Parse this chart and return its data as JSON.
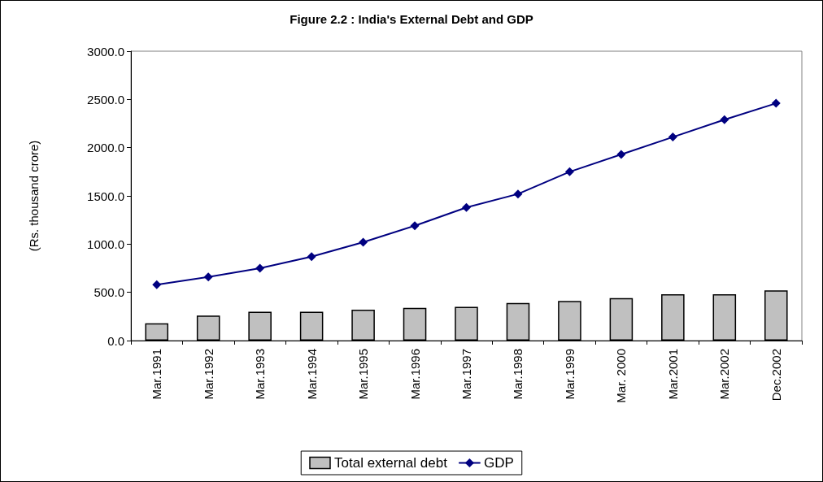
{
  "chart_data": {
    "type": "bar",
    "title": "Figure 2.2 : India's External Debt and GDP",
    "ylabel": "(Rs. thousand crore)",
    "categories": [
      "Mar.1991",
      "Mar.1992",
      "Mar.1993",
      "Mar.1994",
      "Mar.1995",
      "Mar.1996",
      "Mar.1997",
      "Mar.1998",
      "Mar.1999",
      "Mar. 2000",
      "Mar.2001",
      "Mar.2002",
      "Dec.2002"
    ],
    "series": [
      {
        "name": "Total external debt",
        "color": "#c0c0c0",
        "values": [
          180,
          260,
          300,
          300,
          320,
          340,
          350,
          390,
          410,
          440,
          480,
          480,
          520
        ]
      },
      {
        "name": "GDP",
        "type": "line",
        "color": "#000080",
        "marker": "diamond",
        "values": [
          580,
          660,
          750,
          870,
          1020,
          1190,
          1380,
          1520,
          1750,
          1930,
          2110,
          2290,
          2460
        ]
      }
    ],
    "ylim": [
      0,
      3000
    ],
    "yticks": [
      {
        "value": 0,
        "label": "0.0"
      },
      {
        "value": 500,
        "label": "500.0"
      },
      {
        "value": 1000,
        "label": "1000.0"
      },
      {
        "value": 1500,
        "label": "1500.0"
      },
      {
        "value": 2000,
        "label": "2000.0"
      },
      {
        "value": 2500,
        "label": "2500.0"
      },
      {
        "value": 3000,
        "label": "3000.0"
      }
    ],
    "grid": false,
    "legend": "bottom"
  }
}
